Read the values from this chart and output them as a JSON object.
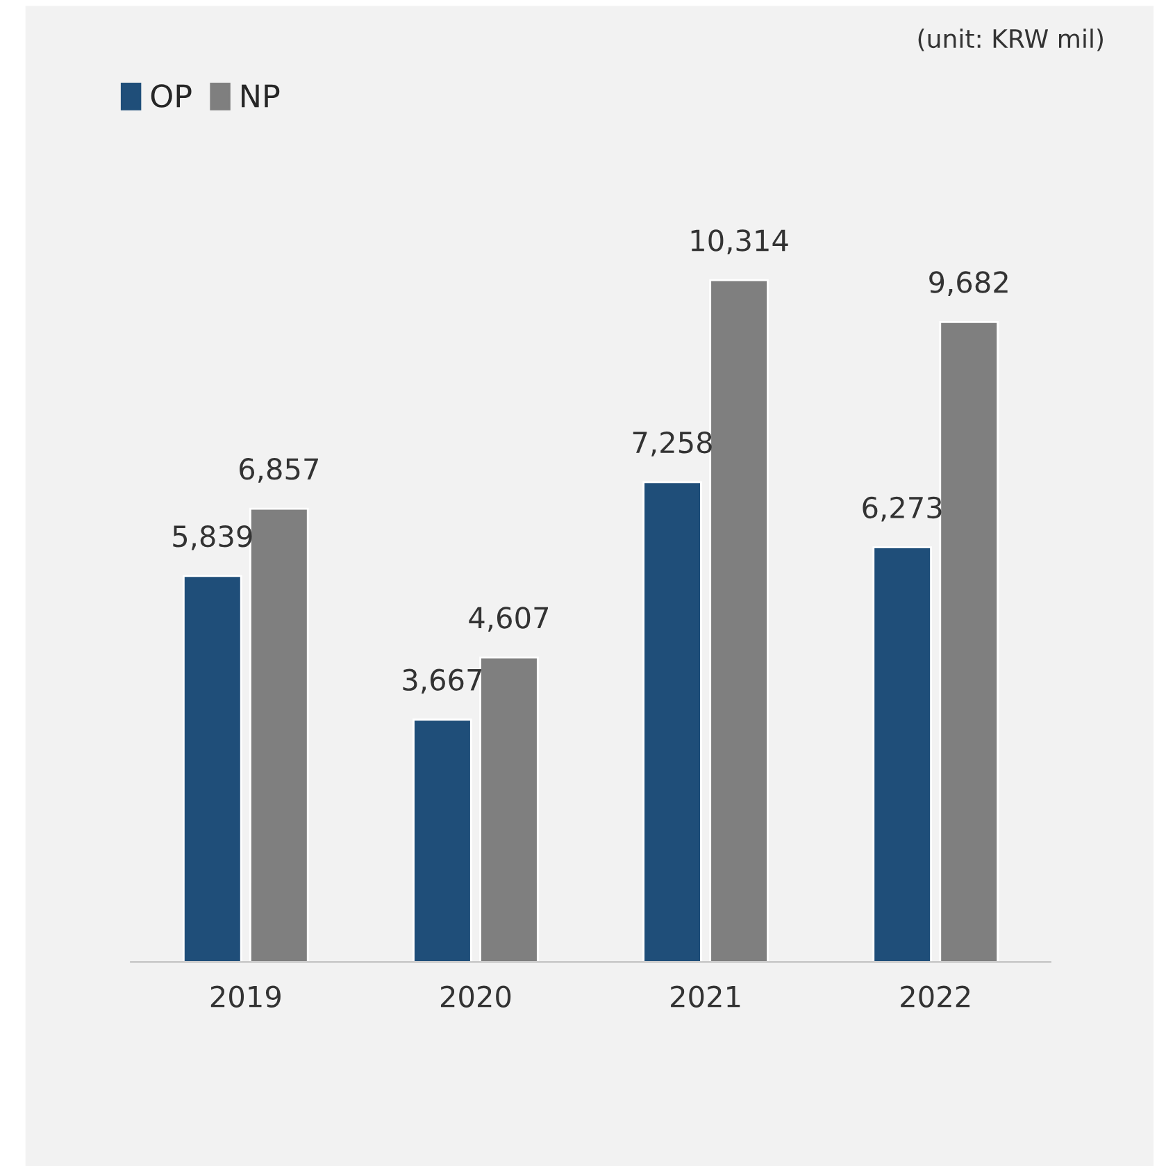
{
  "chart_data": {
    "type": "bar",
    "categories": [
      "2019",
      "2020",
      "2021",
      "2022"
    ],
    "series": [
      {
        "name": "OP",
        "color": "#1f4e79",
        "values": [
          5839,
          3667,
          7258,
          6273
        ],
        "value_labels": [
          "5,839",
          "3,667",
          "7,258",
          "6,273"
        ]
      },
      {
        "name": "NP",
        "color": "#7f7f7f",
        "values": [
          6857,
          4607,
          10314,
          9682
        ],
        "value_labels": [
          "6,857",
          "4,607",
          "10,314",
          "9,682"
        ]
      }
    ],
    "annotations": [
      "(unit: KRW mil)"
    ],
    "legend": "top left",
    "grid": false
  }
}
